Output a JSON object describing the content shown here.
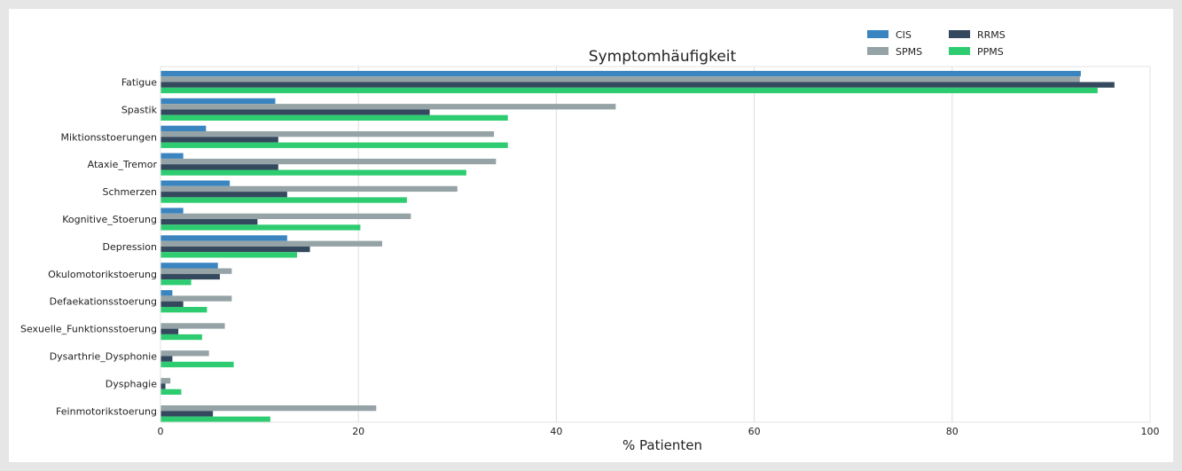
{
  "chart_data": {
    "type": "bar",
    "orientation": "horizontal",
    "title": "Symptomhäufigkeit",
    "xlabel": "% Patienten",
    "ylabel": "",
    "xlim": [
      0,
      100
    ],
    "xticks": [
      "0",
      "20",
      "40",
      "60",
      "80",
      "100"
    ],
    "grid": "vertical",
    "legend_position": "top-right",
    "categories": [
      "Fatigue",
      "Spastik",
      "Miktionsstoerungen",
      "Ataxie_Tremor",
      "Schmerzen",
      "Kognitive_Stoerung",
      "Depression",
      "Okulomotorikstoerung",
      "Defaekationsstoerung",
      "Sexuelle_Funktionsstoerung",
      "Dysarthrie_Dysphonie",
      "Dysphagie",
      "Feinmotorikstoerung"
    ],
    "series": [
      {
        "name": "CIS",
        "color": "#3a85c0",
        "values": [
          93,
          11.6,
          4.6,
          2.3,
          7.0,
          2.3,
          12.8,
          5.8,
          1.2,
          0,
          0,
          0,
          0
        ]
      },
      {
        "name": "SPMS",
        "color": "#95a3a6",
        "values": [
          92.9,
          46,
          33.7,
          33.9,
          30,
          25.3,
          22.4,
          7.2,
          7.2,
          6.5,
          4.9,
          1.0,
          21.8
        ]
      },
      {
        "name": "RRMS",
        "color": "#34495e",
        "values": [
          96.4,
          27.2,
          11.9,
          11.9,
          12.8,
          9.8,
          15.1,
          6.0,
          2.3,
          1.8,
          1.2,
          0.5,
          5.3
        ]
      },
      {
        "name": "PPMS",
        "color": "#2ecc71",
        "values": [
          94.7,
          35.1,
          35.1,
          30.9,
          24.9,
          20.2,
          13.8,
          3.1,
          4.7,
          4.2,
          7.4,
          2.1,
          11.1
        ]
      }
    ]
  }
}
